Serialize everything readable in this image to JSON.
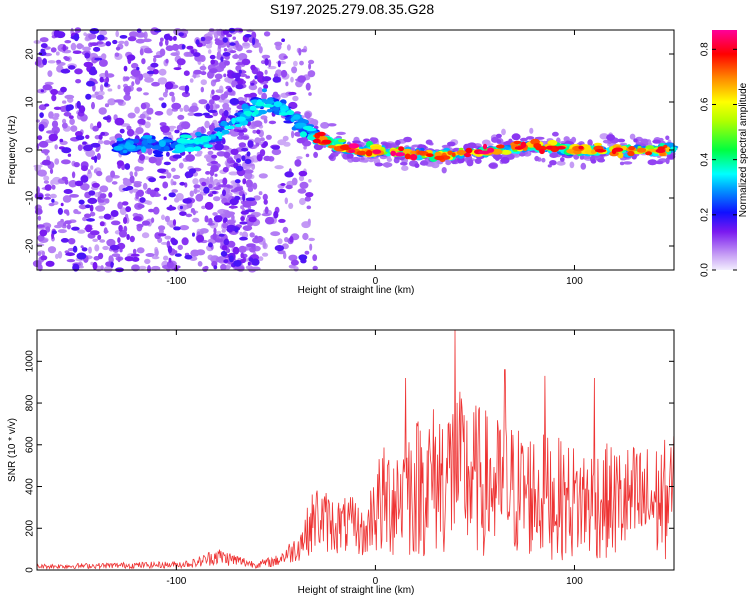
{
  "title": "S197.2025.279.08.35.G28",
  "chart_data": [
    {
      "type": "heatmap",
      "xlabel": "Height of straight line (km)",
      "ylabel": "Frequency (Hz)",
      "xlim": [
        -170,
        150
      ],
      "ylim": [
        -25,
        25
      ],
      "xticks": [
        -100,
        0,
        100
      ],
      "yticks": [
        -20,
        -10,
        0,
        10,
        20
      ],
      "colorbar": {
        "label": "Normalized spectral amplitude",
        "range": [
          0,
          0.87
        ],
        "ticks": [
          "0.0",
          "0.2",
          "0.4",
          "0.6",
          "0.8"
        ]
      },
      "ridge": {
        "x": [
          -170,
          -130,
          -100,
          -85,
          -75,
          -65,
          -55,
          -45,
          -40,
          -30,
          -20,
          -10,
          0,
          20,
          40,
          60,
          80,
          100,
          120,
          150
        ],
        "y": [
          1,
          1,
          1,
          2,
          5,
          8,
          10,
          8,
          6,
          3,
          1,
          0,
          0,
          -1,
          -1,
          0,
          1,
          0,
          0,
          0
        ]
      }
    },
    {
      "type": "line",
      "xlabel": "Height of straight line (km)",
      "ylabel": "SNR (10 * v/v)",
      "xlim": [
        -170,
        150
      ],
      "ylim": [
        0,
        1150
      ],
      "xticks": [
        -100,
        0,
        100
      ],
      "yticks": [
        0,
        200,
        400,
        600,
        800,
        1000
      ],
      "series": [
        {
          "name": "SNR",
          "color": "#ee3333",
          "envelope_x": [
            -170,
            -100,
            -90,
            -80,
            -60,
            -50,
            -40,
            -35,
            -30,
            -20,
            -10,
            -5,
            0,
            10,
            20,
            30,
            40,
            50,
            60,
            80,
            100,
            120,
            140,
            150
          ],
          "envelope_y": [
            20,
            30,
            40,
            80,
            30,
            50,
            120,
            200,
            300,
            250,
            250,
            180,
            400,
            500,
            550,
            600,
            650,
            600,
            550,
            500,
            450,
            450,
            450,
            480
          ],
          "peaks_x": [
            15,
            40,
            65,
            85,
            110
          ],
          "peaks_y": [
            920,
            1150,
            960,
            930,
            920
          ]
        }
      ]
    }
  ]
}
